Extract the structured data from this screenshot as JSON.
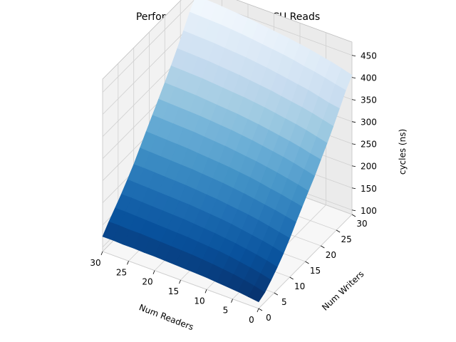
{
  "chart_data": {
    "type": "surface",
    "title": "Performance mountain of RCU Reads",
    "xlabel": "Num Readers",
    "ylabel": "Num Writers",
    "zlabel": "cycles (ns)",
    "xlim": [
      0,
      30
    ],
    "ylim": [
      0,
      30
    ],
    "zlim": [
      90,
      480
    ],
    "x_ticks": [
      "0",
      "5",
      "10",
      "15",
      "20",
      "25",
      "30"
    ],
    "y_ticks": [
      "0",
      "5",
      "10",
      "15",
      "20",
      "25",
      "30"
    ],
    "z_ticks": [
      "100",
      "150",
      "200",
      "250",
      "300",
      "350",
      "400",
      "450"
    ],
    "colormap": "Blues",
    "grid": true,
    "x_values": [
      0,
      2,
      4,
      6,
      8,
      10,
      12,
      14,
      16,
      18,
      20,
      22,
      24,
      26,
      28,
      30
    ],
    "y_values": [
      0,
      2,
      4,
      6,
      8,
      10,
      12,
      14,
      16,
      18,
      20,
      22,
      24,
      26,
      28,
      30
    ],
    "z_values": [
      [
        105,
        112,
        126,
        141,
        158,
        178,
        200,
        221,
        242,
        262,
        285,
        308,
        332,
        358,
        385,
        405
      ],
      [
        108,
        118,
        132,
        147,
        164,
        183,
        205,
        226,
        248,
        268,
        290,
        314,
        338,
        362,
        390,
        412
      ],
      [
        111,
        123,
        137,
        152,
        169,
        188,
        210,
        231,
        253,
        274,
        296,
        320,
        344,
        368,
        396,
        418
      ],
      [
        113,
        127,
        141,
        156,
        173,
        193,
        214,
        235,
        258,
        279,
        301,
        325,
        349,
        374,
        401,
        423
      ],
      [
        115,
        130,
        145,
        160,
        177,
        197,
        218,
        240,
        262,
        283,
        305,
        329,
        353,
        378,
        405,
        428
      ],
      [
        117,
        133,
        148,
        163,
        181,
        200,
        222,
        244,
        266,
        287,
        309,
        333,
        357,
        382,
        410,
        432
      ],
      [
        118,
        135,
        150,
        166,
        184,
        203,
        225,
        247,
        269,
        291,
        313,
        337,
        361,
        386,
        414,
        436
      ],
      [
        119,
        137,
        152,
        168,
        186,
        206,
        228,
        250,
        272,
        294,
        316,
        340,
        364,
        390,
        417,
        439
      ],
      [
        120,
        138,
        154,
        170,
        188,
        208,
        230,
        252,
        275,
        297,
        319,
        343,
        367,
        393,
        420,
        442
      ],
      [
        121,
        139,
        155,
        172,
        190,
        210,
        232,
        254,
        277,
        299,
        321,
        345,
        370,
        396,
        423,
        445
      ],
      [
        122,
        140,
        156,
        173,
        191,
        212,
        234,
        256,
        279,
        301,
        323,
        347,
        372,
        398,
        426,
        448
      ],
      [
        122,
        141,
        157,
        174,
        192,
        213,
        235,
        258,
        281,
        303,
        325,
        349,
        374,
        400,
        428,
        450
      ],
      [
        123,
        142,
        158,
        175,
        193,
        214,
        236,
        259,
        282,
        304,
        327,
        351,
        376,
        402,
        430,
        452
      ],
      [
        123,
        142,
        159,
        176,
        194,
        215,
        237,
        260,
        283,
        305,
        328,
        352,
        377,
        403,
        431,
        454
      ],
      [
        124,
        143,
        160,
        177,
        195,
        216,
        238,
        261,
        284,
        306,
        329,
        353,
        378,
        404,
        432,
        455
      ],
      [
        124,
        143,
        160,
        177,
        196,
        216,
        239,
        262,
        285,
        307,
        330,
        354,
        379,
        405,
        433,
        456
      ]
    ]
  }
}
